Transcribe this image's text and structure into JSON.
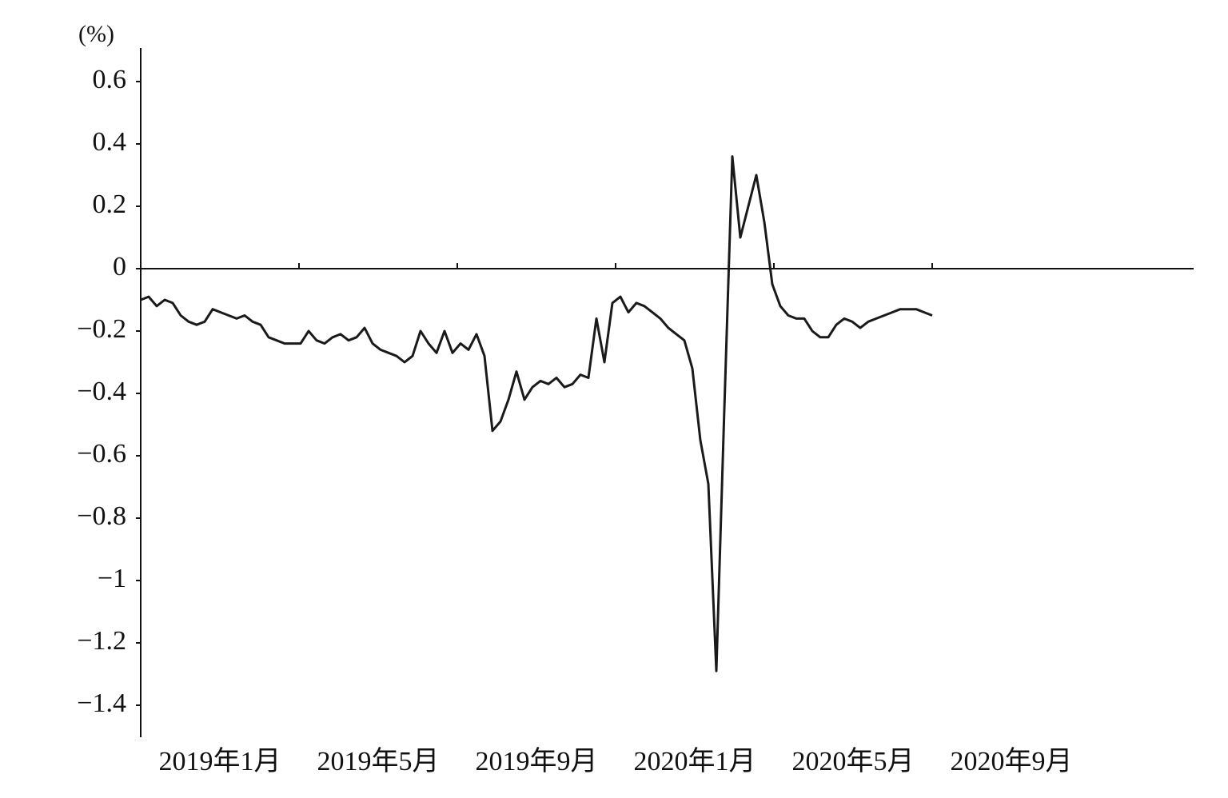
{
  "chart_data": {
    "type": "line",
    "unit_label": "(%)",
    "x_labels": [
      "2019年1月",
      "2019年5月",
      "2019年9月",
      "2020年1月",
      "2020年5月",
      "2020年9月"
    ],
    "ylim": [
      -1.5,
      0.7
    ],
    "yticks": [
      0.6,
      0.4,
      0.2,
      0,
      {
        "value": -0.2,
        "label": "−0.2"
      },
      {
        "value": -0.4,
        "label": "−0.4"
      },
      {
        "value": -0.6,
        "label": "−0.6"
      },
      {
        "value": -0.8,
        "label": "−0.8"
      },
      {
        "value": -1,
        "label": "−1"
      },
      {
        "value": -1.2,
        "label": "−1.2"
      },
      {
        "value": -1.4,
        "label": "−1.4"
      }
    ],
    "color": "#1a1a1a",
    "values": [
      -0.1,
      -0.09,
      -0.12,
      -0.1,
      -0.11,
      -0.15,
      -0.17,
      -0.18,
      -0.17,
      -0.13,
      -0.14,
      -0.15,
      -0.16,
      -0.15,
      -0.17,
      -0.18,
      -0.22,
      -0.23,
      -0.24,
      -0.24,
      -0.24,
      -0.2,
      -0.23,
      -0.24,
      -0.22,
      -0.21,
      -0.23,
      -0.22,
      -0.19,
      -0.24,
      -0.26,
      -0.27,
      -0.28,
      -0.3,
      -0.28,
      -0.2,
      -0.24,
      -0.27,
      -0.2,
      -0.27,
      -0.24,
      -0.26,
      -0.21,
      -0.28,
      -0.52,
      -0.49,
      -0.42,
      -0.33,
      -0.42,
      -0.38,
      -0.36,
      -0.37,
      -0.35,
      -0.38,
      -0.37,
      -0.34,
      -0.35,
      -0.16,
      -0.3,
      -0.11,
      -0.09,
      -0.14,
      -0.11,
      -0.12,
      -0.14,
      -0.16,
      -0.19,
      -0.21,
      -0.23,
      -0.32,
      -0.55,
      -0.69,
      -1.29,
      -0.45,
      0.36,
      0.1,
      0.2,
      0.3,
      0.15,
      -0.05,
      -0.12,
      -0.15,
      -0.16,
      -0.16,
      -0.2,
      -0.22,
      -0.22,
      -0.18,
      -0.16,
      -0.17,
      -0.19,
      -0.17,
      -0.16,
      -0.15,
      -0.14,
      -0.13,
      -0.13,
      -0.13,
      -0.14,
      -0.15
    ]
  }
}
